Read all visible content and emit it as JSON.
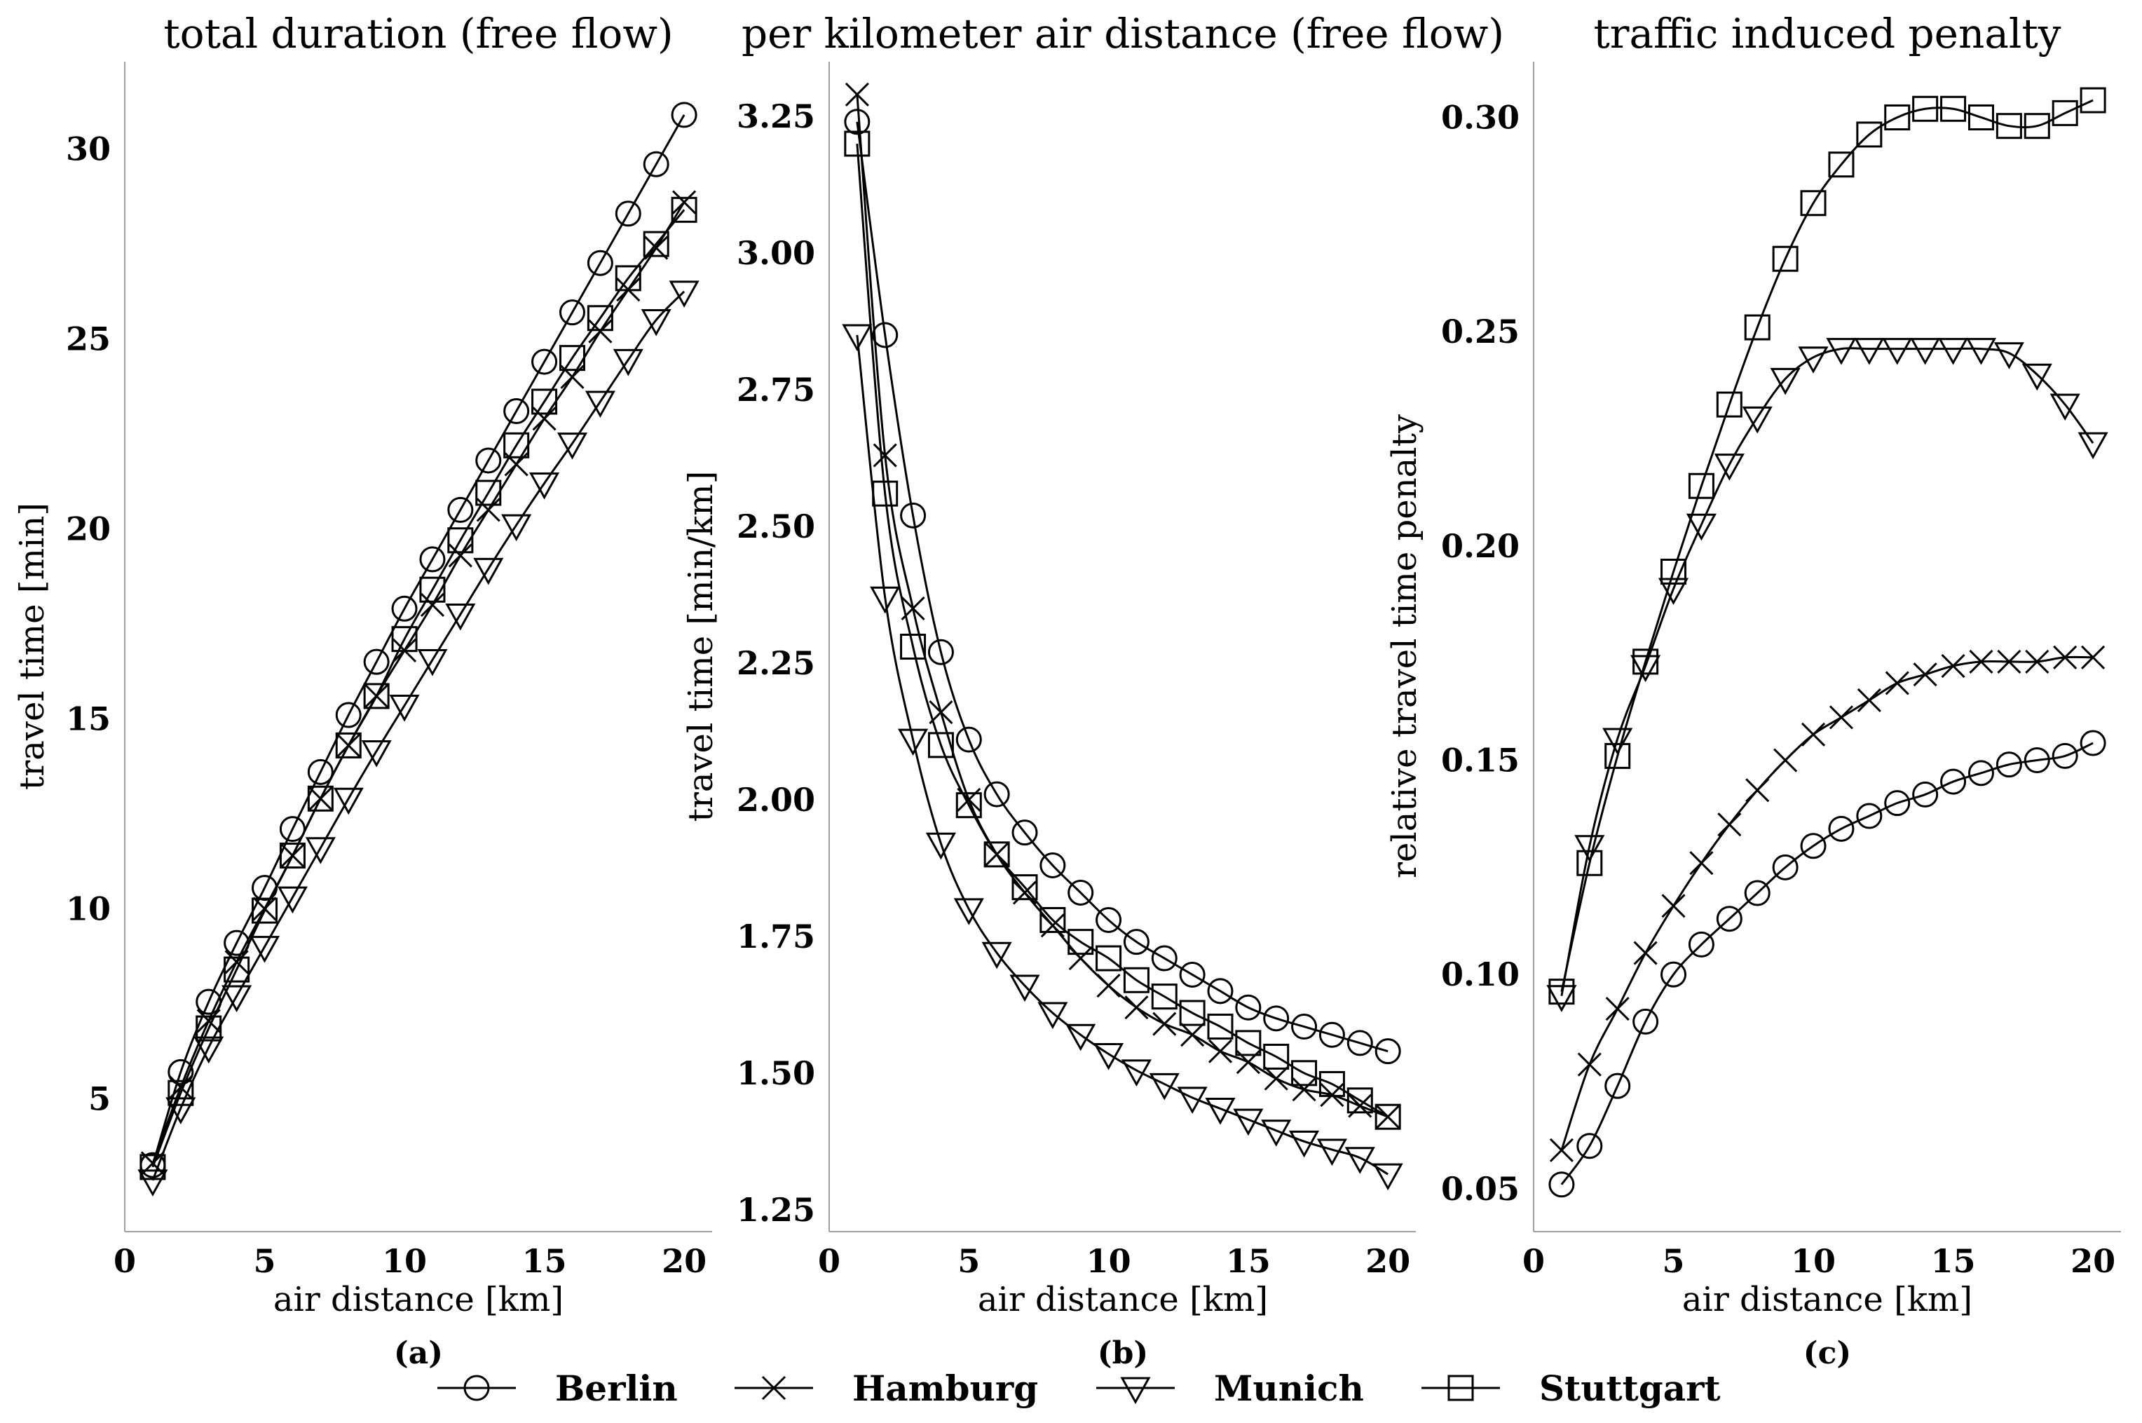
{
  "legend": [
    {
      "name": "Berlin",
      "marker": "circle"
    },
    {
      "name": "Hamburg",
      "marker": "x"
    },
    {
      "name": "Munich",
      "marker": "triangle-down"
    },
    {
      "name": "Stuttgart",
      "marker": "square"
    }
  ],
  "chart_data": [
    {
      "type": "line",
      "panel": "(a)",
      "title": "total duration (free flow)",
      "xlabel": "air distance [km]",
      "ylabel": "travel time [min]",
      "xlim": [
        0,
        21
      ],
      "ylim": [
        1.5,
        32.3
      ],
      "xticks": [
        "0",
        "5",
        "10",
        "15",
        "20"
      ],
      "xtick_values": [
        0,
        5,
        10,
        15,
        20
      ],
      "yticks": [
        "5",
        "10",
        "15",
        "20",
        "25",
        "30"
      ],
      "ytick_values": [
        5,
        10,
        15,
        20,
        25,
        30
      ],
      "x": [
        1,
        2,
        3,
        4,
        5,
        6,
        7,
        8,
        9,
        10,
        11,
        12,
        13,
        14,
        15,
        16,
        17,
        18,
        19,
        20
      ],
      "series": [
        {
          "name": "Berlin",
          "marker": "circle",
          "values": [
            3.25,
            5.7,
            7.55,
            9.1,
            10.55,
            12.1,
            13.6,
            15.1,
            16.5,
            17.9,
            19.2,
            20.5,
            21.8,
            23.1,
            24.4,
            25.7,
            27.0,
            28.3,
            29.6,
            30.9
          ]
        },
        {
          "name": "Hamburg",
          "marker": "x",
          "values": [
            3.3,
            5.3,
            7.05,
            8.6,
            10.0,
            11.4,
            12.9,
            14.3,
            15.6,
            16.8,
            18.0,
            19.3,
            20.5,
            21.7,
            22.9,
            24.0,
            25.2,
            26.3,
            27.4,
            28.6
          ]
        },
        {
          "name": "Munich",
          "marker": "triangle-down",
          "values": [
            2.85,
            4.75,
            6.35,
            7.7,
            9.0,
            10.3,
            11.6,
            12.9,
            14.15,
            15.35,
            16.55,
            17.75,
            18.95,
            20.1,
            21.2,
            22.25,
            23.35,
            24.45,
            25.5,
            26.25
          ]
        },
        {
          "name": "Stuttgart",
          "marker": "square",
          "values": [
            3.2,
            5.15,
            6.85,
            8.4,
            9.95,
            11.4,
            12.9,
            14.3,
            15.6,
            17.1,
            18.4,
            19.7,
            20.95,
            22.2,
            23.35,
            24.5,
            25.55,
            26.6,
            27.5,
            28.4
          ]
        }
      ]
    },
    {
      "type": "line",
      "panel": "(b)",
      "title": "per kilometer air distance (free flow)",
      "xlabel": "air distance [km]",
      "ylabel": "travel time [min/km]",
      "xlim": [
        0,
        21
      ],
      "ylim": [
        1.21,
        3.35
      ],
      "xticks": [
        "0",
        "5",
        "10",
        "15",
        "20"
      ],
      "xtick_values": [
        0,
        5,
        10,
        15,
        20
      ],
      "yticks": [
        "1.25",
        "1.50",
        "1.75",
        "2.00",
        "2.25",
        "2.50",
        "2.75",
        "3.00",
        "3.25"
      ],
      "ytick_values": [
        1.25,
        1.5,
        1.75,
        2.0,
        2.25,
        2.5,
        2.75,
        3.0,
        3.25
      ],
      "x": [
        1,
        2,
        3,
        4,
        5,
        6,
        7,
        8,
        9,
        10,
        11,
        12,
        13,
        14,
        15,
        16,
        17,
        18,
        19,
        20
      ],
      "series": [
        {
          "name": "Berlin",
          "marker": "circle",
          "values": [
            3.24,
            2.85,
            2.52,
            2.27,
            2.11,
            2.01,
            1.94,
            1.88,
            1.83,
            1.78,
            1.74,
            1.71,
            1.68,
            1.65,
            1.62,
            1.6,
            1.585,
            1.57,
            1.555,
            1.54
          ]
        },
        {
          "name": "Hamburg",
          "marker": "x",
          "values": [
            3.29,
            2.63,
            2.35,
            2.16,
            2.0,
            1.9,
            1.83,
            1.77,
            1.71,
            1.66,
            1.62,
            1.59,
            1.57,
            1.54,
            1.52,
            1.49,
            1.47,
            1.46,
            1.44,
            1.42
          ]
        },
        {
          "name": "Munich",
          "marker": "triangle-down",
          "values": [
            2.85,
            2.37,
            2.11,
            1.92,
            1.8,
            1.72,
            1.66,
            1.61,
            1.57,
            1.535,
            1.505,
            1.48,
            1.455,
            1.435,
            1.415,
            1.395,
            1.375,
            1.36,
            1.345,
            1.315
          ]
        },
        {
          "name": "Stuttgart",
          "marker": "square",
          "values": [
            3.2,
            2.56,
            2.28,
            2.1,
            1.99,
            1.9,
            1.84,
            1.78,
            1.74,
            1.71,
            1.67,
            1.64,
            1.61,
            1.585,
            1.555,
            1.53,
            1.5,
            1.48,
            1.45,
            1.42
          ]
        }
      ]
    },
    {
      "type": "line",
      "panel": "(c)",
      "title": "traffic induced penalty",
      "xlabel": "air distance [km]",
      "ylabel": "relative travel time penalty",
      "xlim": [
        0,
        21
      ],
      "ylim": [
        0.04,
        0.313
      ],
      "xticks": [
        "0",
        "5",
        "10",
        "15",
        "20"
      ],
      "xtick_values": [
        0,
        5,
        10,
        15,
        20
      ],
      "yticks": [
        "0.05",
        "0.10",
        "0.15",
        "0.20",
        "0.25",
        "0.30"
      ],
      "ytick_values": [
        0.05,
        0.1,
        0.15,
        0.2,
        0.25,
        0.3
      ],
      "x": [
        1,
        2,
        3,
        4,
        5,
        6,
        7,
        8,
        9,
        10,
        11,
        12,
        13,
        14,
        15,
        16,
        17,
        18,
        19,
        20
      ],
      "series": [
        {
          "name": "Berlin",
          "marker": "circle",
          "values": [
            0.051,
            0.06,
            0.074,
            0.089,
            0.1,
            0.107,
            0.113,
            0.119,
            0.125,
            0.13,
            0.134,
            0.137,
            0.14,
            0.142,
            0.145,
            0.147,
            0.149,
            0.15,
            0.151,
            0.154
          ]
        },
        {
          "name": "Hamburg",
          "marker": "x",
          "values": [
            0.059,
            0.079,
            0.092,
            0.105,
            0.116,
            0.126,
            0.135,
            0.143,
            0.15,
            0.156,
            0.16,
            0.164,
            0.168,
            0.17,
            0.172,
            0.173,
            0.173,
            0.173,
            0.174,
            0.174
          ]
        },
        {
          "name": "Munich",
          "marker": "triangle-down",
          "values": [
            0.095,
            0.13,
            0.155,
            0.172,
            0.19,
            0.205,
            0.219,
            0.23,
            0.239,
            0.244,
            0.246,
            0.246,
            0.246,
            0.246,
            0.246,
            0.246,
            0.245,
            0.24,
            0.233,
            0.224
          ]
        },
        {
          "name": "Stuttgart",
          "marker": "square",
          "values": [
            0.096,
            0.126,
            0.151,
            0.173,
            0.194,
            0.214,
            0.233,
            0.251,
            0.267,
            0.28,
            0.289,
            0.296,
            0.3,
            0.302,
            0.302,
            0.3,
            0.298,
            0.298,
            0.301,
            0.304
          ]
        }
      ]
    }
  ]
}
